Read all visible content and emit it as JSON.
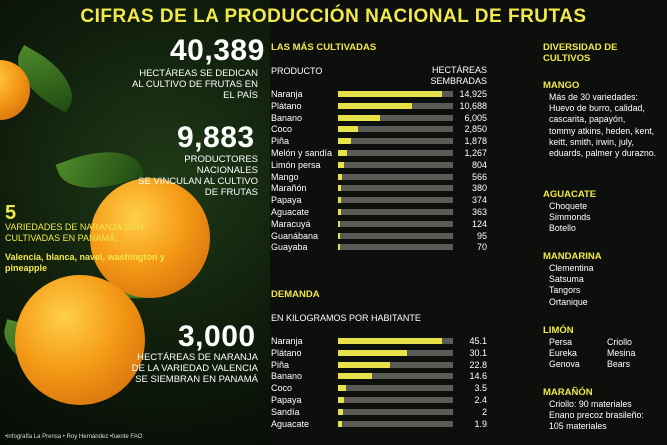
{
  "title": "CIFRAS DE LA PRODUCCIÓN NACIONAL DE FRUTAS",
  "stats": [
    {
      "number": "40,389",
      "text": [
        "HECTÁREAS SE DEDICAN",
        "AL CULTIVO DE FRUTAS EN",
        "EL PAÍS"
      ]
    },
    {
      "number": "9,883",
      "text": [
        "PRODUCTORES NACIONALES",
        "SE VINCULAN AL CULTIVO",
        "DE FRUTAS"
      ]
    },
    {
      "number": "3,000",
      "text": [
        "HECTÁREAS DE NARANJA",
        "DE LA VARIEDAD VALENCIA",
        "SE SIEMBRAN EN PANAMÁ"
      ]
    }
  ],
  "varieties": {
    "number": "5",
    "text": "VARIEDADES DE NARANJA SON CULTIVADAS EN PANAMÁ:",
    "list": "Valencia, blanca, navel, washington y pineapple"
  },
  "footer": "•infografía La Prensa • Roy Hernández   •fuente FAO",
  "chart_data": [
    {
      "type": "bar",
      "title": "LAS MÁS CULTIVADAS",
      "xlabel": "PRODUCTO",
      "ylabel": "HECTÁREAS SEMBRADAS",
      "categories": [
        "Naranja",
        "Plátano",
        "Banano",
        "Coco",
        "Piña",
        "Melón y sandía",
        "Limón persa",
        "Mango",
        "Marañón",
        "Papaya",
        "Aguacate",
        "Maracuyá",
        "Guanábana",
        "Guayaba"
      ],
      "values": [
        14925,
        10688,
        6005,
        2850,
        1878,
        1267,
        804,
        566,
        380,
        374,
        363,
        124,
        95,
        70
      ],
      "value_labels": [
        "14,925",
        "10,688",
        "6,005",
        "2,850",
        "1,878",
        "1,267",
        "804",
        "566",
        "380",
        "374",
        "363",
        "124",
        "95",
        "70"
      ],
      "xlim": [
        0,
        16500
      ]
    },
    {
      "type": "bar",
      "title": "DEMANDA",
      "subtitle": "EN KILOGRAMOS POR HABITANTE",
      "categories": [
        "Naranja",
        "Plátano",
        "Piña",
        "Banano",
        "Coco",
        "Papaya",
        "Sandía",
        "Aguacate"
      ],
      "values": [
        45.1,
        30.1,
        22.8,
        14.6,
        3.5,
        2.4,
        2,
        1.9
      ],
      "value_labels": [
        "45.1",
        "30.1",
        "22.8",
        "14.6",
        "3.5",
        "2.4",
        "2",
        "1.9"
      ],
      "xlim": [
        0,
        50
      ]
    }
  ],
  "diversity": {
    "title_lines": [
      "DIVERSIDAD DE",
      "CULTIVOS"
    ],
    "groups": [
      {
        "name": "MANGO",
        "lines": [
          "Más de 30 variedades:",
          "Huevo de burro, calidad,",
          "cascarita, papayón,",
          "tommy atkins, heden, kent,",
          "keitt, smith, irwin, july,",
          "eduards, palmer y durazno."
        ]
      },
      {
        "name": "AGUACATE",
        "lines": [
          "Choquete",
          "Simmonds",
          "Botello"
        ]
      },
      {
        "name": "MANDARINA",
        "lines": [
          "Clementina",
          "Satsuma",
          "Tangors",
          "Ortanique"
        ]
      },
      {
        "name": "LIMÓN",
        "col1": [
          "Persa",
          "Eureka",
          "Genova"
        ],
        "col2": [
          "Criollo",
          "Mesina",
          "Bears"
        ]
      },
      {
        "name": "MARAÑÓN",
        "lines": [
          "Criollo: 90 materiales",
          "Enano precoz brasileño:",
          "105 materiales"
        ]
      }
    ]
  },
  "colors": {
    "accent": "#f2e84a",
    "bar_fill": "#e8e24a",
    "bar_track": "#5a5b57",
    "background": "#0d0f0c"
  }
}
